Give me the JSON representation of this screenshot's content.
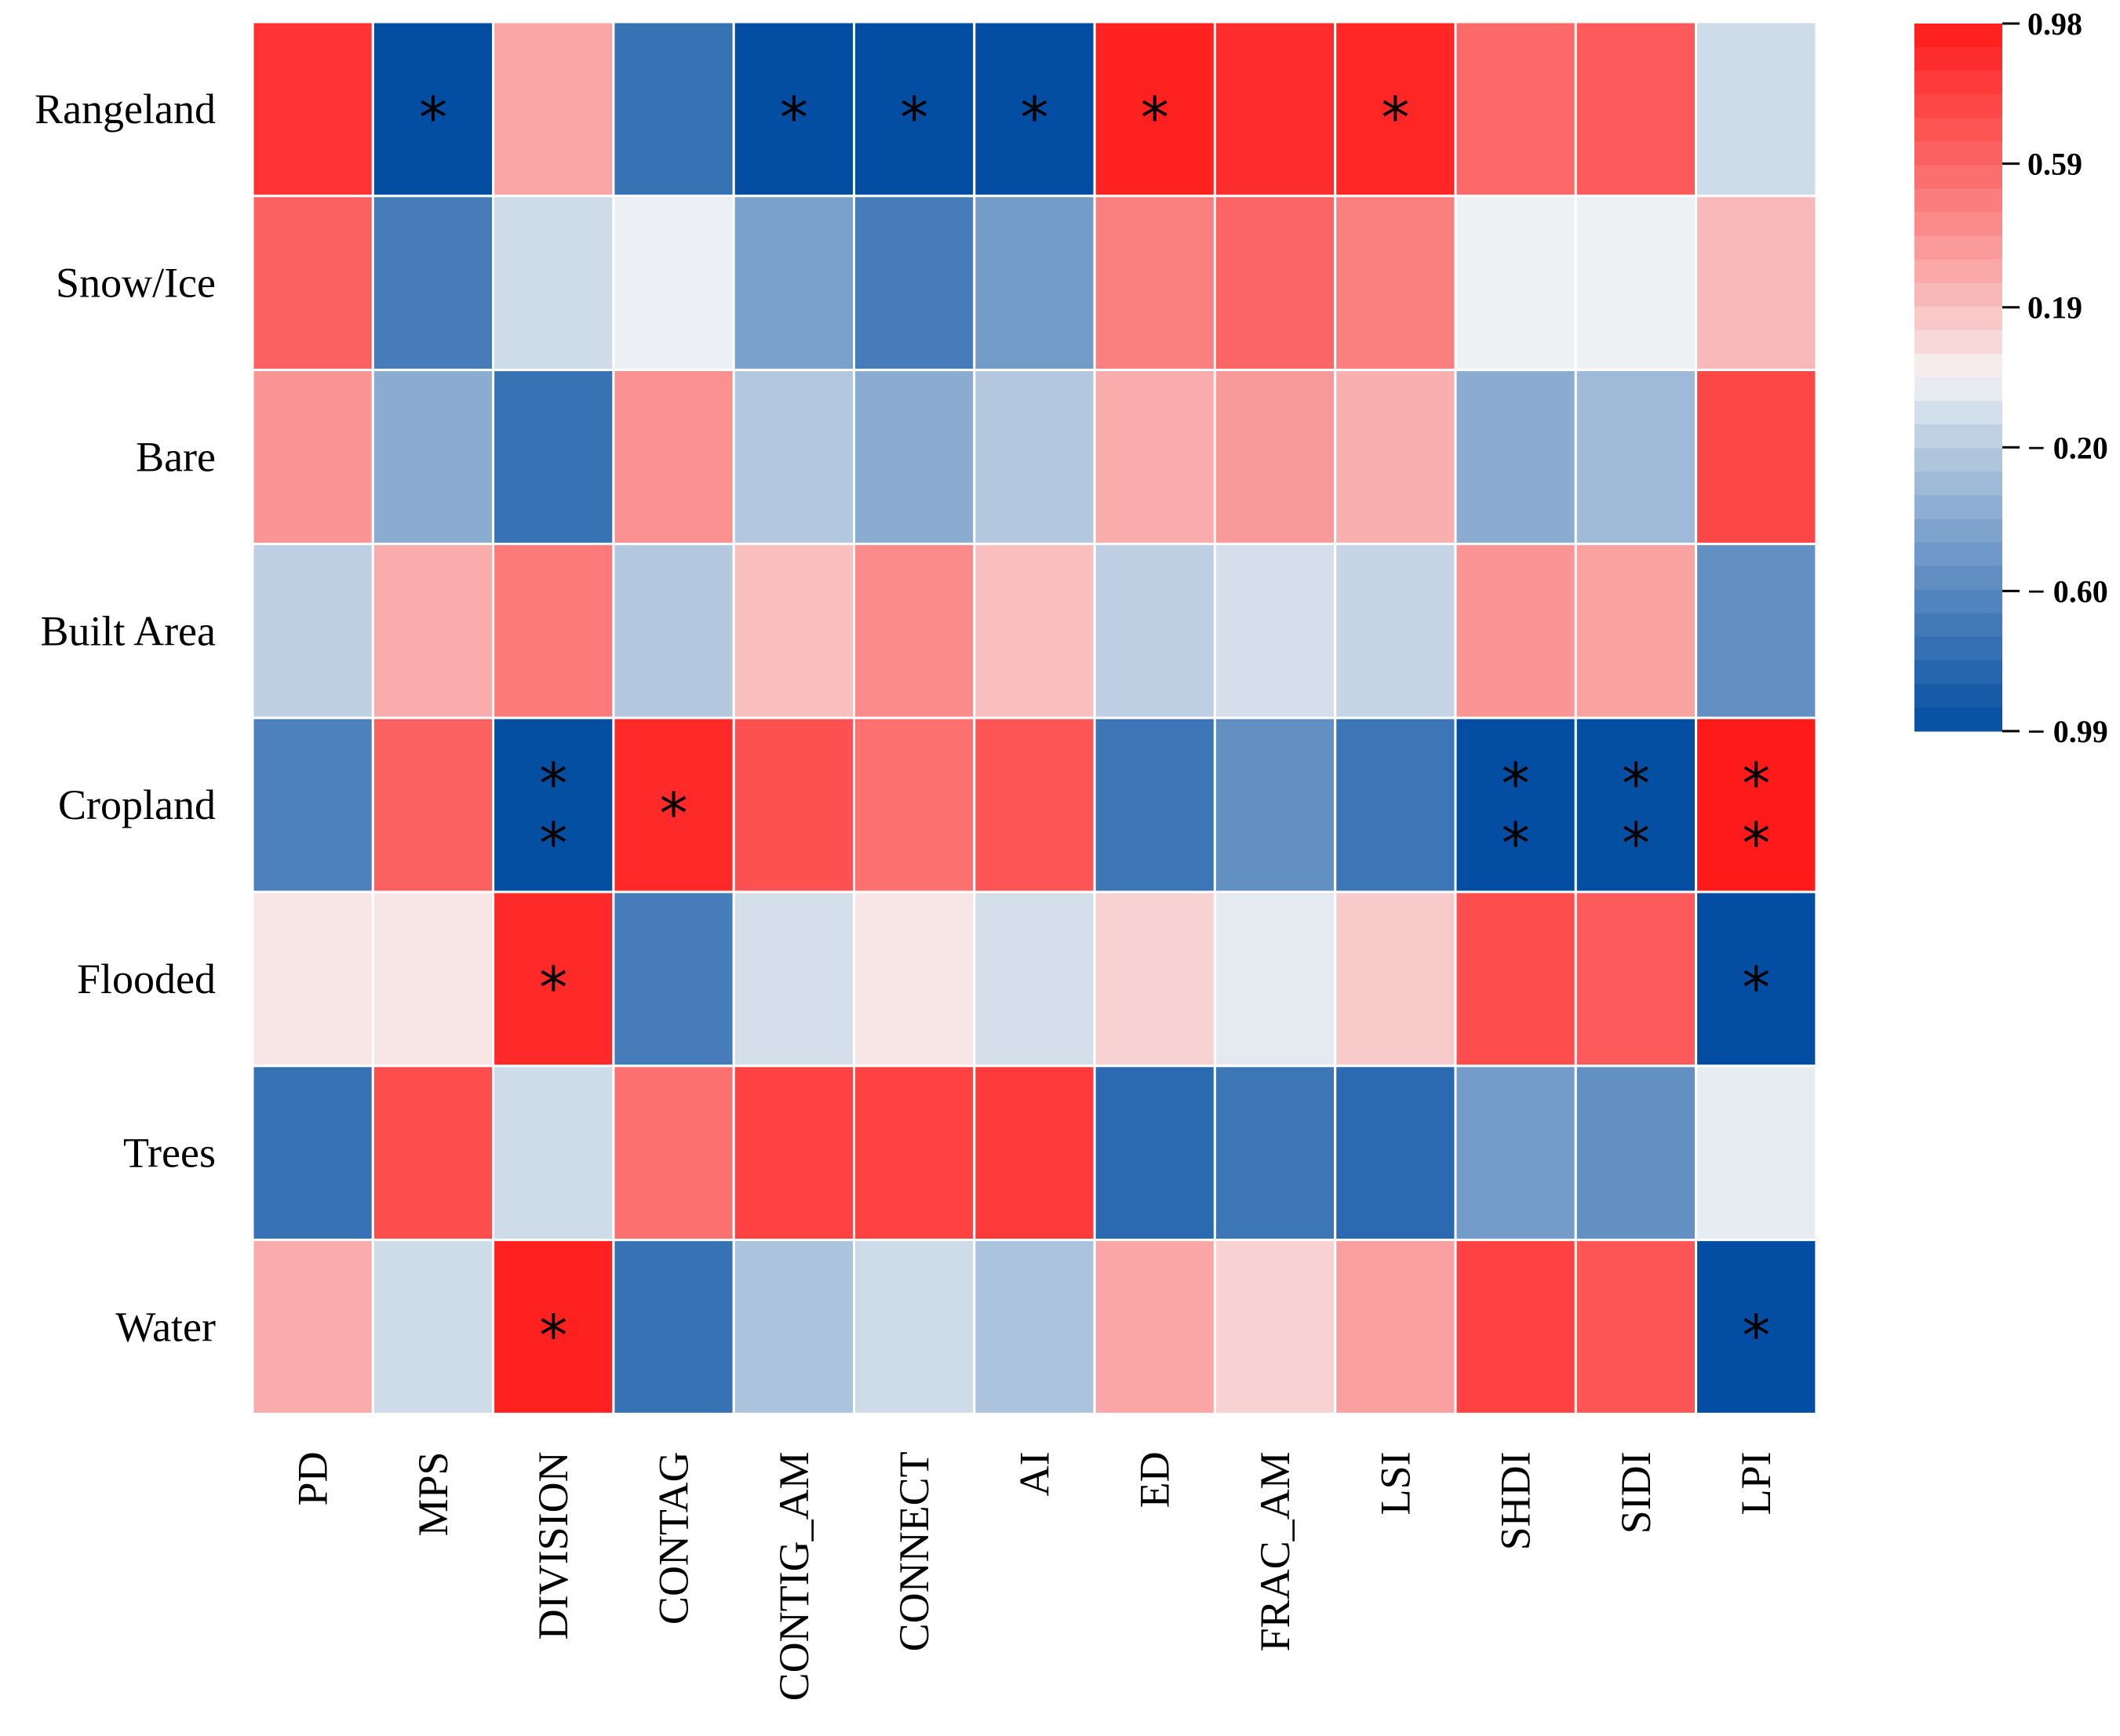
{
  "chart_data": {
    "type": "heatmap",
    "title": "",
    "rows": [
      "Rangeland",
      "Snow/Ice",
      "Bare",
      "Built Area",
      "Cropland",
      "Flooded",
      "Trees",
      "Water"
    ],
    "columns": [
      "PD",
      "MPS",
      "DIVISION",
      "CONTAG",
      "CONTIG_AM",
      "CONNECT",
      "AI",
      "ED",
      "FRAC_AM",
      "LSI",
      "SHDI",
      "SIDI",
      "LPI"
    ],
    "values": [
      [
        0.85,
        -0.99,
        0.3,
        -0.75,
        -0.99,
        -0.99,
        -0.99,
        0.95,
        0.88,
        0.92,
        0.58,
        0.65,
        -0.12
      ],
      [
        0.62,
        -0.68,
        -0.12,
        -0.03,
        -0.45,
        -0.68,
        -0.48,
        0.48,
        0.6,
        0.48,
        -0.02,
        -0.02,
        0.22
      ],
      [
        0.38,
        -0.38,
        -0.75,
        0.4,
        -0.22,
        -0.38,
        -0.22,
        0.28,
        0.36,
        0.26,
        -0.38,
        -0.3,
        0.75
      ],
      [
        -0.18,
        0.28,
        0.5,
        -0.22,
        0.2,
        0.42,
        0.2,
        -0.18,
        -0.1,
        -0.15,
        0.38,
        0.32,
        -0.55
      ],
      [
        -0.65,
        0.62,
        -0.98,
        0.9,
        0.7,
        0.55,
        0.68,
        -0.72,
        -0.55,
        -0.72,
        -0.99,
        -0.98,
        0.98
      ],
      [
        0.05,
        0.05,
        0.9,
        -0.68,
        -0.1,
        0.05,
        -0.1,
        0.12,
        -0.05,
        0.15,
        0.72,
        0.65,
        -0.99
      ],
      [
        -0.75,
        0.72,
        -0.12,
        0.55,
        0.78,
        0.78,
        0.82,
        -0.8,
        -0.72,
        -0.8,
        -0.48,
        -0.55,
        -0.04
      ],
      [
        0.28,
        -0.12,
        0.95,
        -0.75,
        -0.25,
        -0.12,
        -0.25,
        0.3,
        0.12,
        0.33,
        0.78,
        0.68,
        -0.99
      ]
    ],
    "significance": [
      [
        "",
        "*",
        "",
        "",
        "*",
        "*",
        "*",
        "*",
        "",
        "*",
        "",
        "",
        ""
      ],
      [
        "",
        "",
        "",
        "",
        "",
        "",
        "",
        "",
        "",
        "",
        "",
        "",
        ""
      ],
      [
        "",
        "",
        "",
        "",
        "",
        "",
        "",
        "",
        "",
        "",
        "",
        "",
        ""
      ],
      [
        "",
        "",
        "",
        "",
        "",
        "",
        "",
        "",
        "",
        "",
        "",
        "",
        ""
      ],
      [
        "",
        "",
        "**",
        "*",
        "",
        "",
        "",
        "",
        "",
        "",
        "**",
        "**",
        "**"
      ],
      [
        "",
        "",
        "*",
        "",
        "",
        "",
        "",
        "",
        "",
        "",
        "",
        "",
        "*"
      ],
      [
        "",
        "",
        "",
        "",
        "",
        "",
        "",
        "",
        "",
        "",
        "",
        "",
        ""
      ],
      [
        "",
        "",
        "*",
        "",
        "",
        "",
        "",
        "",
        "",
        "",
        "",
        "",
        "*"
      ]
    ],
    "colorbar": {
      "min": -0.99,
      "max": 0.98,
      "ticks": [
        0.98,
        0.59,
        0.19,
        -0.2,
        -0.6,
        -0.99
      ],
      "tick_labels": [
        "0.98",
        "0.59",
        "0.19",
        "− 0.20",
        "− 0.60",
        "− 0.99"
      ],
      "levels": 30,
      "low_color": "#034ea2",
      "mid_color": "#f7f7f7",
      "high_color": "#ff1a1a"
    },
    "xlabel": "",
    "ylabel": "",
    "grid": true,
    "legend": "right"
  }
}
